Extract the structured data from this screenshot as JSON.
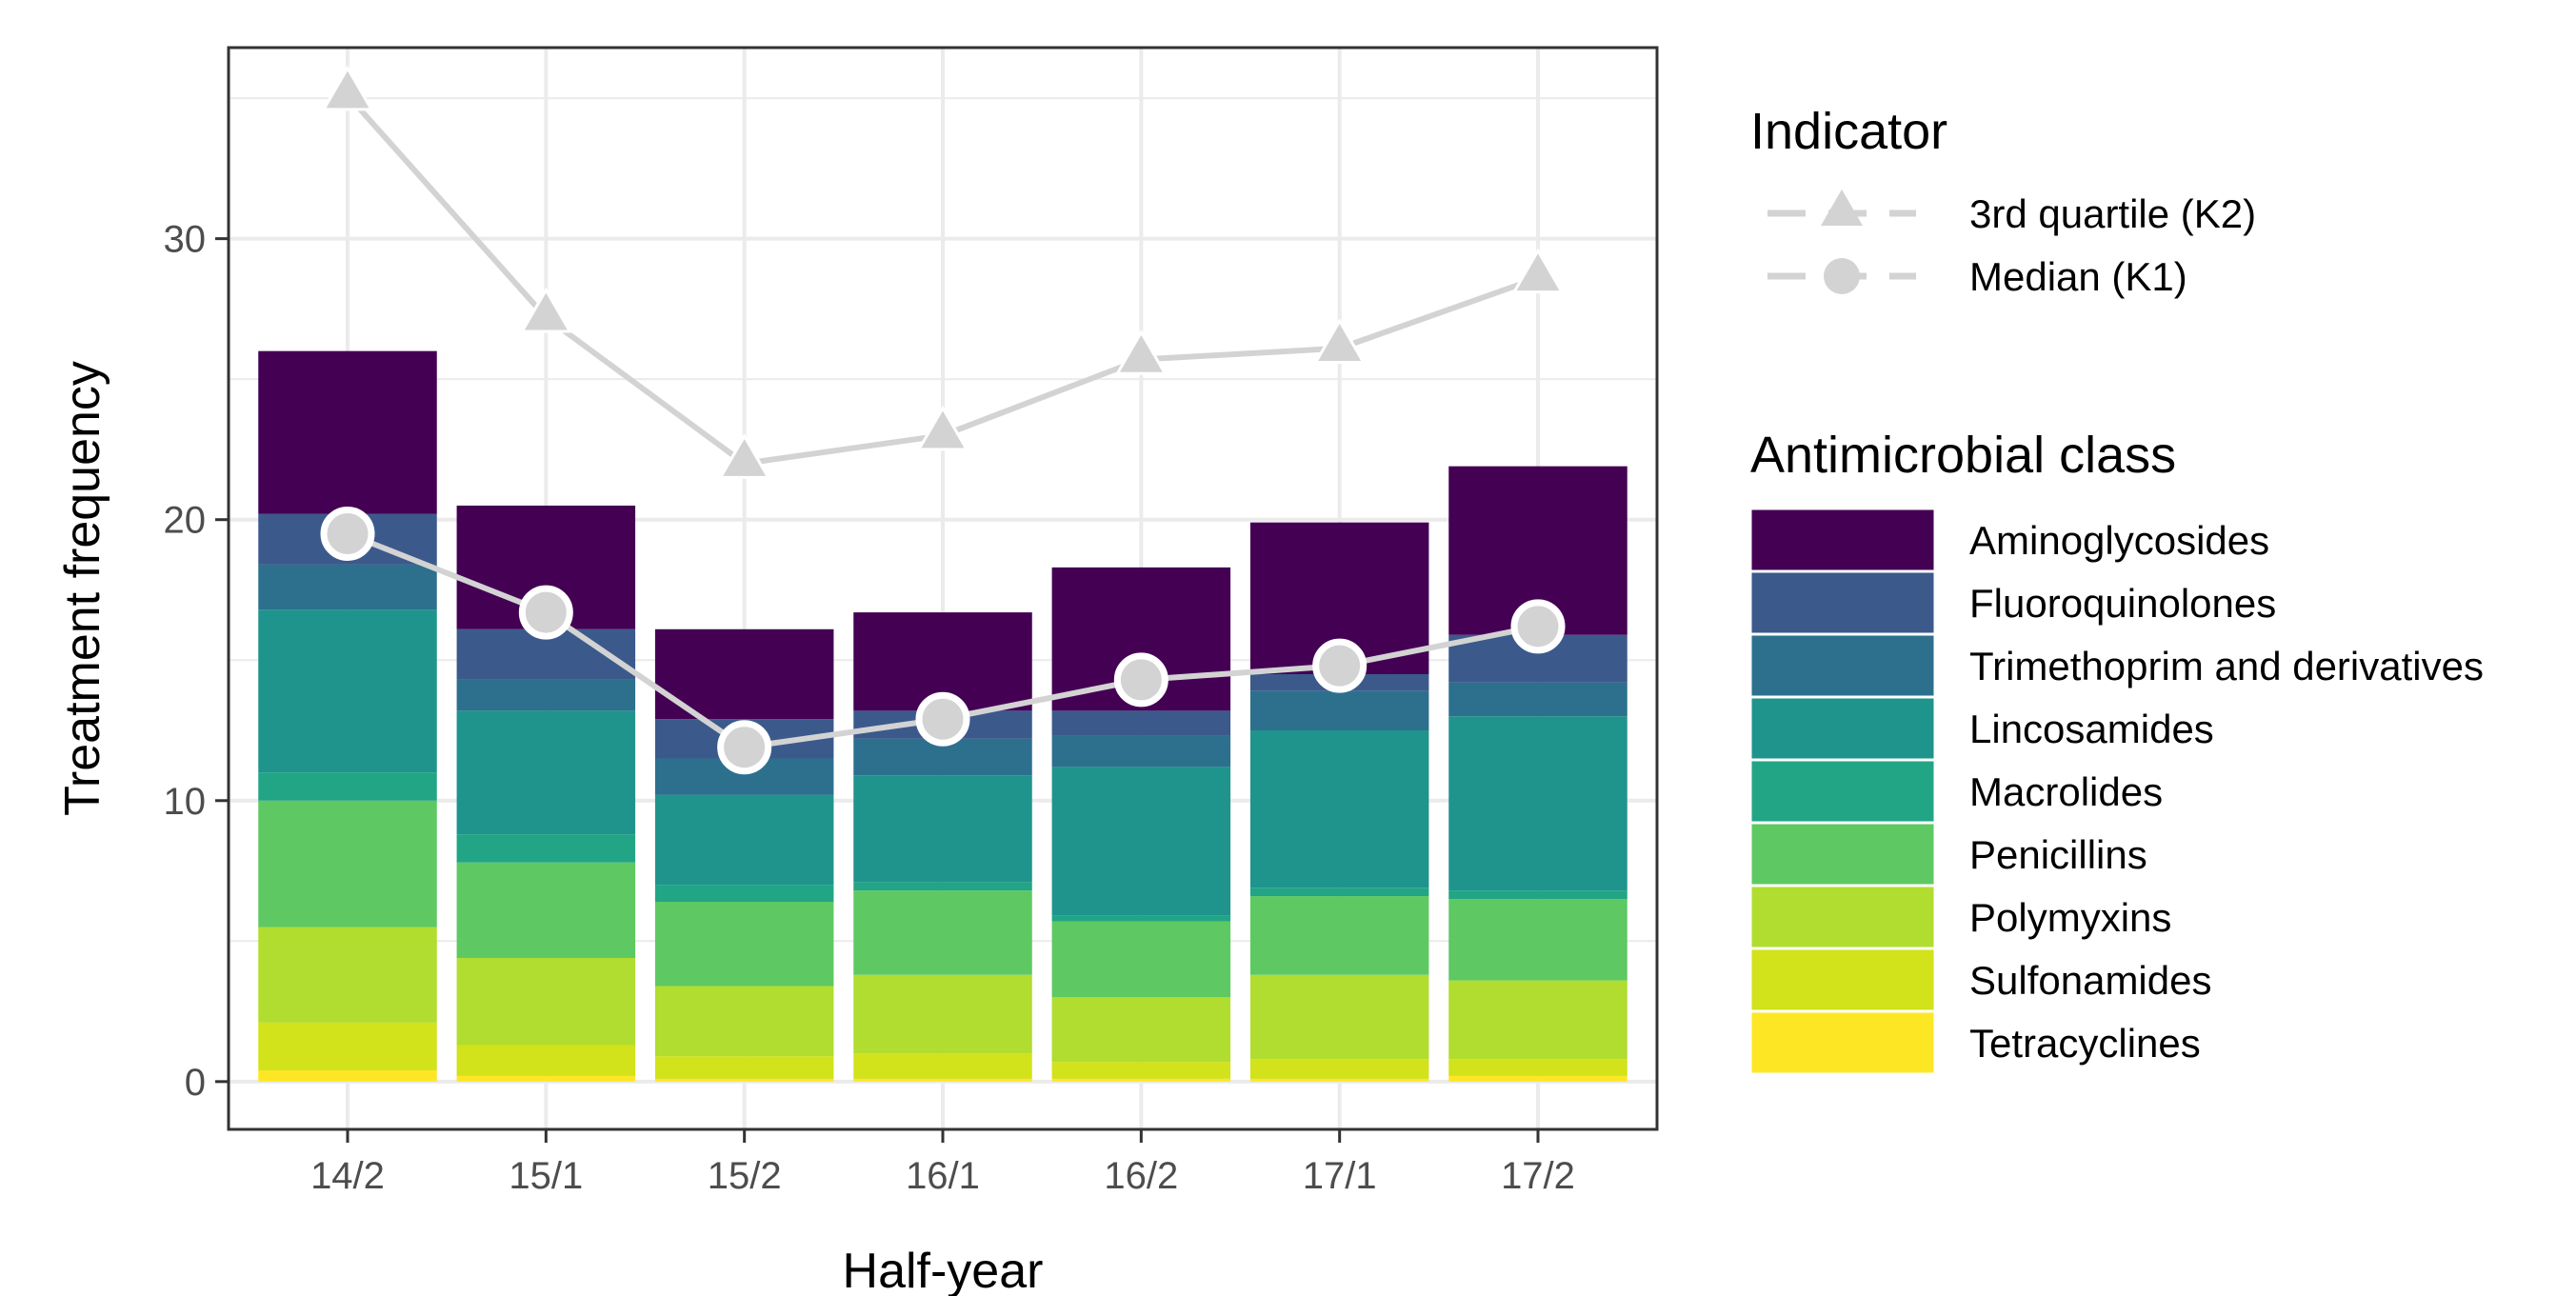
{
  "chart_data": {
    "type": "bar",
    "xlabel": "Half-year",
    "ylabel": "Treatment frequency",
    "categories": [
      "14/2",
      "15/1",
      "15/2",
      "16/1",
      "16/2",
      "17/1",
      "17/2"
    ],
    "ylim": [
      -1.7,
      36.8
    ],
    "yticks": [
      0,
      10,
      20,
      30
    ],
    "grid": true,
    "legend_position": "right",
    "stack_order": "bottom-to-top",
    "series": [
      {
        "name": "Tetracyclines",
        "color": "#FDE725",
        "values": [
          0.4,
          0.2,
          0.1,
          0.1,
          0.1,
          0.1,
          0.2
        ]
      },
      {
        "name": "Sulfonamides",
        "color": "#D2E21B",
        "values": [
          1.7,
          1.1,
          0.8,
          0.9,
          0.6,
          0.7,
          0.6
        ]
      },
      {
        "name": "Polymyxins",
        "color": "#B0DD2F",
        "values": [
          3.4,
          3.1,
          2.5,
          2.8,
          2.3,
          3.0,
          2.8
        ]
      },
      {
        "name": "Penicillins",
        "color": "#5EC962",
        "values": [
          4.5,
          3.4,
          3.0,
          3.0,
          2.7,
          2.8,
          2.9
        ]
      },
      {
        "name": "Macrolides",
        "color": "#21A585",
        "values": [
          1.0,
          1.0,
          0.6,
          0.3,
          0.2,
          0.3,
          0.3
        ]
      },
      {
        "name": "Lincosamides",
        "color": "#1F948C",
        "values": [
          5.8,
          4.4,
          3.2,
          3.8,
          5.3,
          5.6,
          6.2
        ]
      },
      {
        "name": "Trimethoprim and derivatives",
        "color": "#2D708E",
        "values": [
          1.6,
          1.1,
          1.3,
          1.3,
          1.1,
          1.4,
          1.2
        ]
      },
      {
        "name": "Fluoroquinolones",
        "color": "#3B5A8B",
        "values": [
          1.8,
          1.8,
          1.4,
          1.0,
          0.9,
          0.6,
          1.7
        ]
      },
      {
        "name": "Aminoglycosides",
        "color": "#440154",
        "values": [
          5.8,
          4.4,
          3.2,
          3.5,
          5.1,
          5.4,
          6.0
        ]
      }
    ],
    "indicators": [
      {
        "name": "3rd quartile (K2)",
        "marker": "triangle",
        "color": "#D3D3D3",
        "values": [
          35.1,
          27.2,
          22.0,
          23.0,
          25.7,
          26.1,
          28.6
        ]
      },
      {
        "name": "Median (K1)",
        "marker": "circle",
        "color": "#D3D3D3",
        "values": [
          19.5,
          16.7,
          11.9,
          12.9,
          14.3,
          14.8,
          16.2
        ]
      }
    ],
    "legend": {
      "indicator_title": "Indicator",
      "class_title": "Antimicrobial class",
      "class_order": [
        "Aminoglycosides",
        "Fluoroquinolones",
        "Trimethoprim and derivatives",
        "Lincosamides",
        "Macrolides",
        "Penicillins",
        "Polymyxins",
        "Sulfonamides",
        "Tetracyclines"
      ]
    }
  }
}
